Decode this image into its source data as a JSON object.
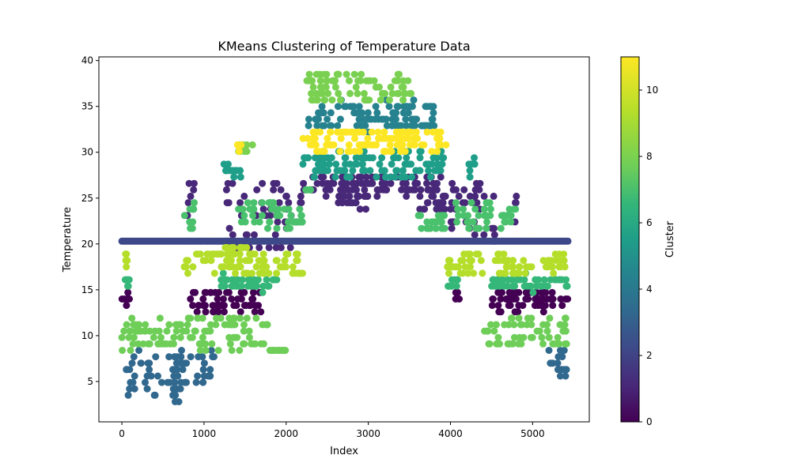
{
  "chart_data": {
    "type": "scatter",
    "title": "KMeans Clustering of Temperature Data",
    "xlabel": "Index",
    "ylabel": "Temperature",
    "colorbar_label": "Cluster",
    "xlim": [
      -280,
      5690
    ],
    "ylim": [
      0.6,
      40.4
    ],
    "xticks": [
      0,
      1000,
      2000,
      3000,
      4000,
      5000
    ],
    "yticks": [
      5,
      10,
      15,
      20,
      25,
      30,
      35,
      40
    ],
    "colorbar_ticks": [
      0,
      2,
      4,
      6,
      8,
      10
    ],
    "colorbar_range": [
      0,
      11
    ],
    "colormap": "viridis",
    "grid": false,
    "clusters": [
      {
        "id": 0,
        "color": "#440154",
        "segments": [
          [
            770,
            1350,
            12.5,
            15.0
          ],
          [
            4500,
            5430,
            12.5,
            15.0
          ],
          [
            1350,
            1700,
            12.7,
            14.5
          ],
          [
            0,
            100,
            13.0,
            14.5
          ],
          [
            4050,
            4120,
            13.5,
            15.0
          ]
        ]
      },
      {
        "id": 1,
        "color": "#482878",
        "segments": [
          [
            780,
            900,
            23.0,
            27.0
          ],
          [
            1250,
            2200,
            19.0,
            27.0
          ],
          [
            2200,
            3900,
            25.5,
            27.5
          ],
          [
            2600,
            3000,
            24.0,
            25.5
          ],
          [
            3600,
            3950,
            23.5,
            25.5
          ],
          [
            4000,
            4600,
            20.5,
            27.0
          ],
          [
            4750,
            4820,
            22.5,
            25.5
          ]
        ]
      },
      {
        "id": 2,
        "color": "#3e4989",
        "segments": [
          [
            0,
            5430,
            20.1,
            20.1
          ]
        ]
      },
      {
        "id": 3,
        "color": "#31688e",
        "segments": [
          [
            40,
            700,
            3.3,
            8.5
          ],
          [
            600,
            750,
            2.5,
            8.0
          ],
          [
            5180,
            5430,
            5.8,
            8.3
          ],
          [
            700,
            1150,
            5.0,
            8.5
          ]
        ]
      },
      {
        "id": 4,
        "color": "#26828e",
        "segments": [
          [
            2250,
            3800,
            32.5,
            35.5
          ],
          [
            3650,
            3780,
            32.8,
            33.0
          ]
        ]
      },
      {
        "id": 5,
        "color": "#1f9e89",
        "segments": [
          [
            1200,
            1450,
            27.5,
            28.8
          ],
          [
            2150,
            3950,
            27.5,
            30.0
          ],
          [
            4200,
            4300,
            27.5,
            29.5
          ]
        ]
      },
      {
        "id": 6,
        "color": "#35b779",
        "segments": [
          [
            1200,
            1900,
            15.0,
            16.5
          ],
          [
            3950,
            4100,
            15.0,
            16.5
          ],
          [
            4500,
            5430,
            15.0,
            16.5
          ],
          [
            0,
            100,
            15.0,
            17.0
          ]
        ]
      },
      {
        "id": 7,
        "color": "#6ece58",
        "segments": [
          [
            0,
            1800,
            8.5,
            12.0
          ],
          [
            1800,
            2000,
            8.2,
            8.5
          ],
          [
            4400,
            4600,
            9.0,
            12.0
          ],
          [
            4650,
            5430,
            9.0,
            12.0
          ]
        ]
      },
      {
        "id": 8,
        "color": "#4ac16d",
        "segments": [
          [
            750,
            900,
            21.5,
            24.5
          ],
          [
            1400,
            2200,
            21.5,
            24.5
          ],
          [
            2200,
            2300,
            25.5,
            26.0
          ],
          [
            3600,
            3950,
            21.5,
            23.5
          ],
          [
            4050,
            4500,
            21.5,
            24.5
          ],
          [
            4600,
            4800,
            21.5,
            24.0
          ]
        ]
      },
      {
        "id": 9,
        "color": "#b5de2b",
        "segments": [
          [
            750,
            2200,
            16.5,
            19.0
          ],
          [
            1200,
            1600,
            19.0,
            19.5
          ],
          [
            3950,
            4400,
            16.5,
            19.0
          ],
          [
            4500,
            5000,
            16.5,
            19.0
          ],
          [
            0,
            100,
            17.5,
            19.0
          ],
          [
            5100,
            5400,
            17.0,
            19.0
          ]
        ]
      },
      {
        "id": 10,
        "color": "#7ad151",
        "segments": [
          [
            2250,
            3550,
            35.5,
            38.5
          ],
          [
            1400,
            1600,
            30.0,
            31.2
          ]
        ]
      },
      {
        "id": 11,
        "color": "#fde725",
        "segments": [
          [
            2200,
            3950,
            30.0,
            32.5
          ],
          [
            1400,
            1450,
            30.3,
            31.2
          ]
        ]
      }
    ]
  }
}
